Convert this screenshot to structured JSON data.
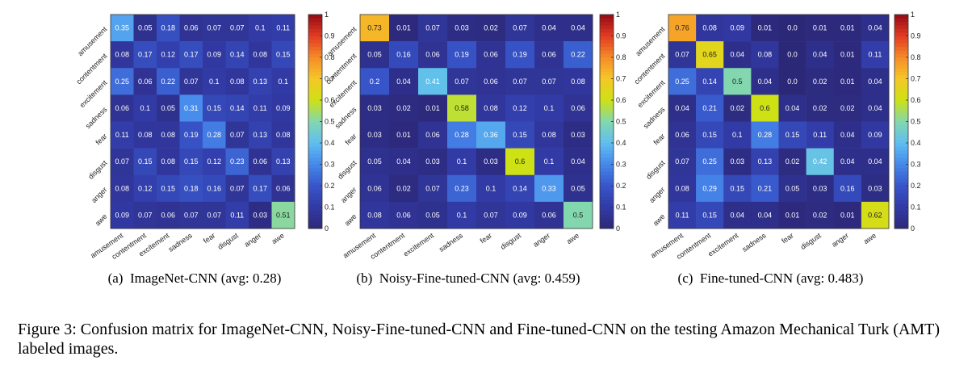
{
  "chart_data": [
    {
      "type": "heatmap",
      "title": "(a)  ImageNet-CNN (avg: 0.28)",
      "categories": [
        "amusement",
        "contentment",
        "excitement",
        "sadness",
        "fear",
        "disgust",
        "anger",
        "awe"
      ],
      "values": [
        [
          0.35,
          0.05,
          0.18,
          0.06,
          0.07,
          0.07,
          0.1,
          0.11
        ],
        [
          0.08,
          0.17,
          0.12,
          0.17,
          0.09,
          0.14,
          0.08,
          0.15
        ],
        [
          0.25,
          0.06,
          0.22,
          0.07,
          0.1,
          0.08,
          0.13,
          0.1
        ],
        [
          0.06,
          0.1,
          0.05,
          0.31,
          0.15,
          0.14,
          0.11,
          0.09
        ],
        [
          0.11,
          0.08,
          0.08,
          0.19,
          0.28,
          0.07,
          0.13,
          0.08
        ],
        [
          0.07,
          0.15,
          0.08,
          0.15,
          0.12,
          0.23,
          0.06,
          0.13
        ],
        [
          0.08,
          0.12,
          0.15,
          0.18,
          0.16,
          0.07,
          0.17,
          0.06
        ],
        [
          0.09,
          0.07,
          0.06,
          0.07,
          0.07,
          0.11,
          0.03,
          0.51
        ]
      ],
      "colorbar_ticks": [
        "0",
        "0.1",
        "0.2",
        "0.3",
        "0.4",
        "0.5",
        "0.6",
        "0.7",
        "0.8",
        "0.9",
        "1"
      ],
      "clim": [
        0,
        1
      ],
      "colormap": "parula"
    },
    {
      "type": "heatmap",
      "title": "(b)  Noisy-Fine-tuned-CNN (avg: 0.459)",
      "categories": [
        "amusement",
        "contentment",
        "excitement",
        "sadness",
        "fear",
        "disgust",
        "anger",
        "awe"
      ],
      "values": [
        [
          0.73,
          0.01,
          0.07,
          0.03,
          0.02,
          0.07,
          0.04,
          0.04
        ],
        [
          0.05,
          0.16,
          0.06,
          0.19,
          0.06,
          0.19,
          0.06,
          0.22
        ],
        [
          0.2,
          0.04,
          0.41,
          0.07,
          0.06,
          0.07,
          0.07,
          0.08
        ],
        [
          0.03,
          0.02,
          0.01,
          0.58,
          0.08,
          0.12,
          0.1,
          0.06
        ],
        [
          0.03,
          0.01,
          0.06,
          0.28,
          0.36,
          0.15,
          0.08,
          0.03
        ],
        [
          0.05,
          0.04,
          0.03,
          0.1,
          0.03,
          0.6,
          0.1,
          0.04
        ],
        [
          0.06,
          0.02,
          0.07,
          0.23,
          0.1,
          0.14,
          0.33,
          0.05
        ],
        [
          0.08,
          0.06,
          0.05,
          0.1,
          0.07,
          0.09,
          0.06,
          0.5
        ]
      ],
      "colorbar_ticks": [
        "0",
        "0.1",
        "0.2",
        "0.3",
        "0.4",
        "0.5",
        "0.6",
        "0.7",
        "0.8",
        "0.9",
        "1"
      ],
      "clim": [
        0,
        1
      ],
      "colormap": "parula"
    },
    {
      "type": "heatmap",
      "title": "(c)  Fine-tuned-CNN (avg: 0.483)",
      "categories": [
        "amusement",
        "contentment",
        "excitement",
        "sadness",
        "fear",
        "disgust",
        "anger",
        "awe"
      ],
      "values": [
        [
          0.76,
          0.08,
          0.09,
          0.01,
          0.0,
          0.01,
          0.01,
          0.04
        ],
        [
          0.07,
          0.65,
          0.04,
          0.08,
          0.0,
          0.04,
          0.01,
          0.11
        ],
        [
          0.25,
          0.14,
          0.5,
          0.04,
          0.0,
          0.02,
          0.01,
          0.04
        ],
        [
          0.04,
          0.21,
          0.02,
          0.6,
          0.04,
          0.02,
          0.02,
          0.04
        ],
        [
          0.06,
          0.15,
          0.1,
          0.28,
          0.15,
          0.11,
          0.04,
          0.09
        ],
        [
          0.07,
          0.25,
          0.03,
          0.13,
          0.02,
          0.42,
          0.04,
          0.04
        ],
        [
          0.08,
          0.29,
          0.15,
          0.21,
          0.05,
          0.03,
          0.16,
          0.03
        ],
        [
          0.11,
          0.15,
          0.04,
          0.04,
          0.01,
          0.02,
          0.01,
          0.62
        ]
      ],
      "colorbar_ticks": [
        "0",
        "0.1",
        "0.2",
        "0.3",
        "0.4",
        "0.5",
        "0.6",
        "0.7",
        "0.8",
        "0.9",
        "1"
      ],
      "clim": [
        0,
        1
      ],
      "colormap": "parula"
    }
  ],
  "value_labels": [
    [
      [
        "0.35",
        "0.05",
        "0.18",
        "0.06",
        "0.07",
        "0.07",
        "0.1",
        "0.11"
      ],
      [
        "0.08",
        "0.17",
        "0.12",
        "0.17",
        "0.09",
        "0.14",
        "0.08",
        "0.15"
      ],
      [
        "0.25",
        "0.06",
        "0.22",
        "0.07",
        "0.1",
        "0.08",
        "0.13",
        "0.1"
      ],
      [
        "0.06",
        "0.1",
        "0.05",
        "0.31",
        "0.15",
        "0.14",
        "0.11",
        "0.09"
      ],
      [
        "0.11",
        "0.08",
        "0.08",
        "0.19",
        "0.28",
        "0.07",
        "0.13",
        "0.08"
      ],
      [
        "0.07",
        "0.15",
        "0.08",
        "0.15",
        "0.12",
        "0.23",
        "0.06",
        "0.13"
      ],
      [
        "0.08",
        "0.12",
        "0.15",
        "0.18",
        "0.16",
        "0.07",
        "0.17",
        "0.06"
      ],
      [
        "0.09",
        "0.07",
        "0.06",
        "0.07",
        "0.07",
        "0.11",
        "0.03",
        "0.51"
      ]
    ],
    [
      [
        "0.73",
        "0.01",
        "0.07",
        "0.03",
        "0.02",
        "0.07",
        "0.04",
        "0.04"
      ],
      [
        "0.05",
        "0.16",
        "0.06",
        "0.19",
        "0.06",
        "0.19",
        "0.06",
        "0.22"
      ],
      [
        "0.2",
        "0.04",
        "0.41",
        "0.07",
        "0.06",
        "0.07",
        "0.07",
        "0.08"
      ],
      [
        "0.03",
        "0.02",
        "0.01",
        "0.58",
        "0.08",
        "0.12",
        "0.1",
        "0.06"
      ],
      [
        "0.03",
        "0.01",
        "0.06",
        "0.28",
        "0.36",
        "0.15",
        "0.08",
        "0.03"
      ],
      [
        "0.05",
        "0.04",
        "0.03",
        "0.1",
        "0.03",
        "0.6",
        "0.1",
        "0.04"
      ],
      [
        "0.06",
        "0.02",
        "0.07",
        "0.23",
        "0.1",
        "0.14",
        "0.33",
        "0.05"
      ],
      [
        "0.08",
        "0.06",
        "0.05",
        "0.1",
        "0.07",
        "0.09",
        "0.06",
        "0.5"
      ]
    ],
    [
      [
        "0.76",
        "0.08",
        "0.09",
        "0.01",
        "0.0",
        "0.01",
        "0.01",
        "0.04"
      ],
      [
        "0.07",
        "0.65",
        "0.04",
        "0.08",
        "0.0",
        "0.04",
        "0.01",
        "0.11"
      ],
      [
        "0.25",
        "0.14",
        "0.5",
        "0.04",
        "0.0",
        "0.02",
        "0.01",
        "0.04"
      ],
      [
        "0.04",
        "0.21",
        "0.02",
        "0.6",
        "0.04",
        "0.02",
        "0.02",
        "0.04"
      ],
      [
        "0.06",
        "0.15",
        "0.1",
        "0.28",
        "0.15",
        "0.11",
        "0.04",
        "0.09"
      ],
      [
        "0.07",
        "0.25",
        "0.03",
        "0.13",
        "0.02",
        "0.42",
        "0.04",
        "0.04"
      ],
      [
        "0.08",
        "0.29",
        "0.15",
        "0.21",
        "0.05",
        "0.03",
        "0.16",
        "0.03"
      ],
      [
        "0.11",
        "0.15",
        "0.04",
        "0.04",
        "0.01",
        "0.02",
        "0.01",
        "0.62"
      ]
    ]
  ],
  "figure_caption": "Figure 3: Confusion matrix for ImageNet-CNN, Noisy-Fine-tuned-CNN and Fine-tuned-CNN on the testing Amazon Mechanical Turk (AMT) labeled images."
}
